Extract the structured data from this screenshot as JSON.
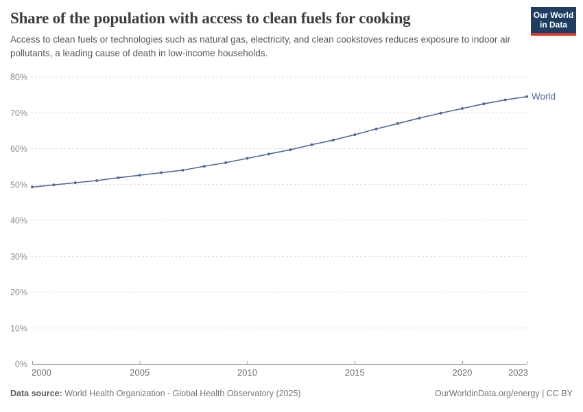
{
  "header": {
    "title": "Share of the population with access to clean fuels for cooking",
    "subtitle": "Access to clean fuels or technologies such as natural gas, electricity, and clean cookstoves reduces exposure to indoor air pollutants, a leading cause of death in low-income households.",
    "logo": {
      "line1": "Our World",
      "line2": "in Data",
      "bg_color": "#1d3d63",
      "accent_color": "#d7382e"
    }
  },
  "chart_data": {
    "type": "line",
    "title": "Share of the population with access to clean fuels for cooking",
    "xlabel": "",
    "ylabel": "",
    "xlim": [
      2000,
      2023
    ],
    "ylim": [
      0,
      80
    ],
    "grid": "horizontal-dashed",
    "legend_position": "end-of-line",
    "x_ticks": [
      2000,
      2005,
      2010,
      2015,
      2020,
      2023
    ],
    "y_ticks": [
      0,
      10,
      20,
      30,
      40,
      50,
      60,
      70,
      80
    ],
    "y_tick_suffix": "%",
    "x": [
      2000,
      2001,
      2002,
      2003,
      2004,
      2005,
      2006,
      2007,
      2008,
      2009,
      2010,
      2011,
      2012,
      2013,
      2014,
      2015,
      2016,
      2017,
      2018,
      2019,
      2020,
      2021,
      2022,
      2023
    ],
    "series": [
      {
        "name": "World",
        "color": "#4c6a9d",
        "values": [
          49.3,
          49.9,
          50.5,
          51.1,
          51.9,
          52.6,
          53.3,
          54.0,
          55.1,
          56.1,
          57.3,
          58.5,
          59.7,
          61.1,
          62.4,
          63.9,
          65.5,
          67.0,
          68.5,
          69.9,
          71.2,
          72.5,
          73.6,
          74.5
        ]
      }
    ]
  },
  "footer": {
    "source_label": "Data source:",
    "source_text": " World Health Organization - Global Health Observatory (2025)",
    "credit": "OurWorldinData.org/energy | CC BY"
  },
  "colors": {
    "line": "#4c6a9d",
    "gridline": "#dcdcdc",
    "axis": "#8f8f8f",
    "title_text": "#3d3d3d",
    "subtitle_text": "#565656",
    "footer_text": "#757575"
  }
}
